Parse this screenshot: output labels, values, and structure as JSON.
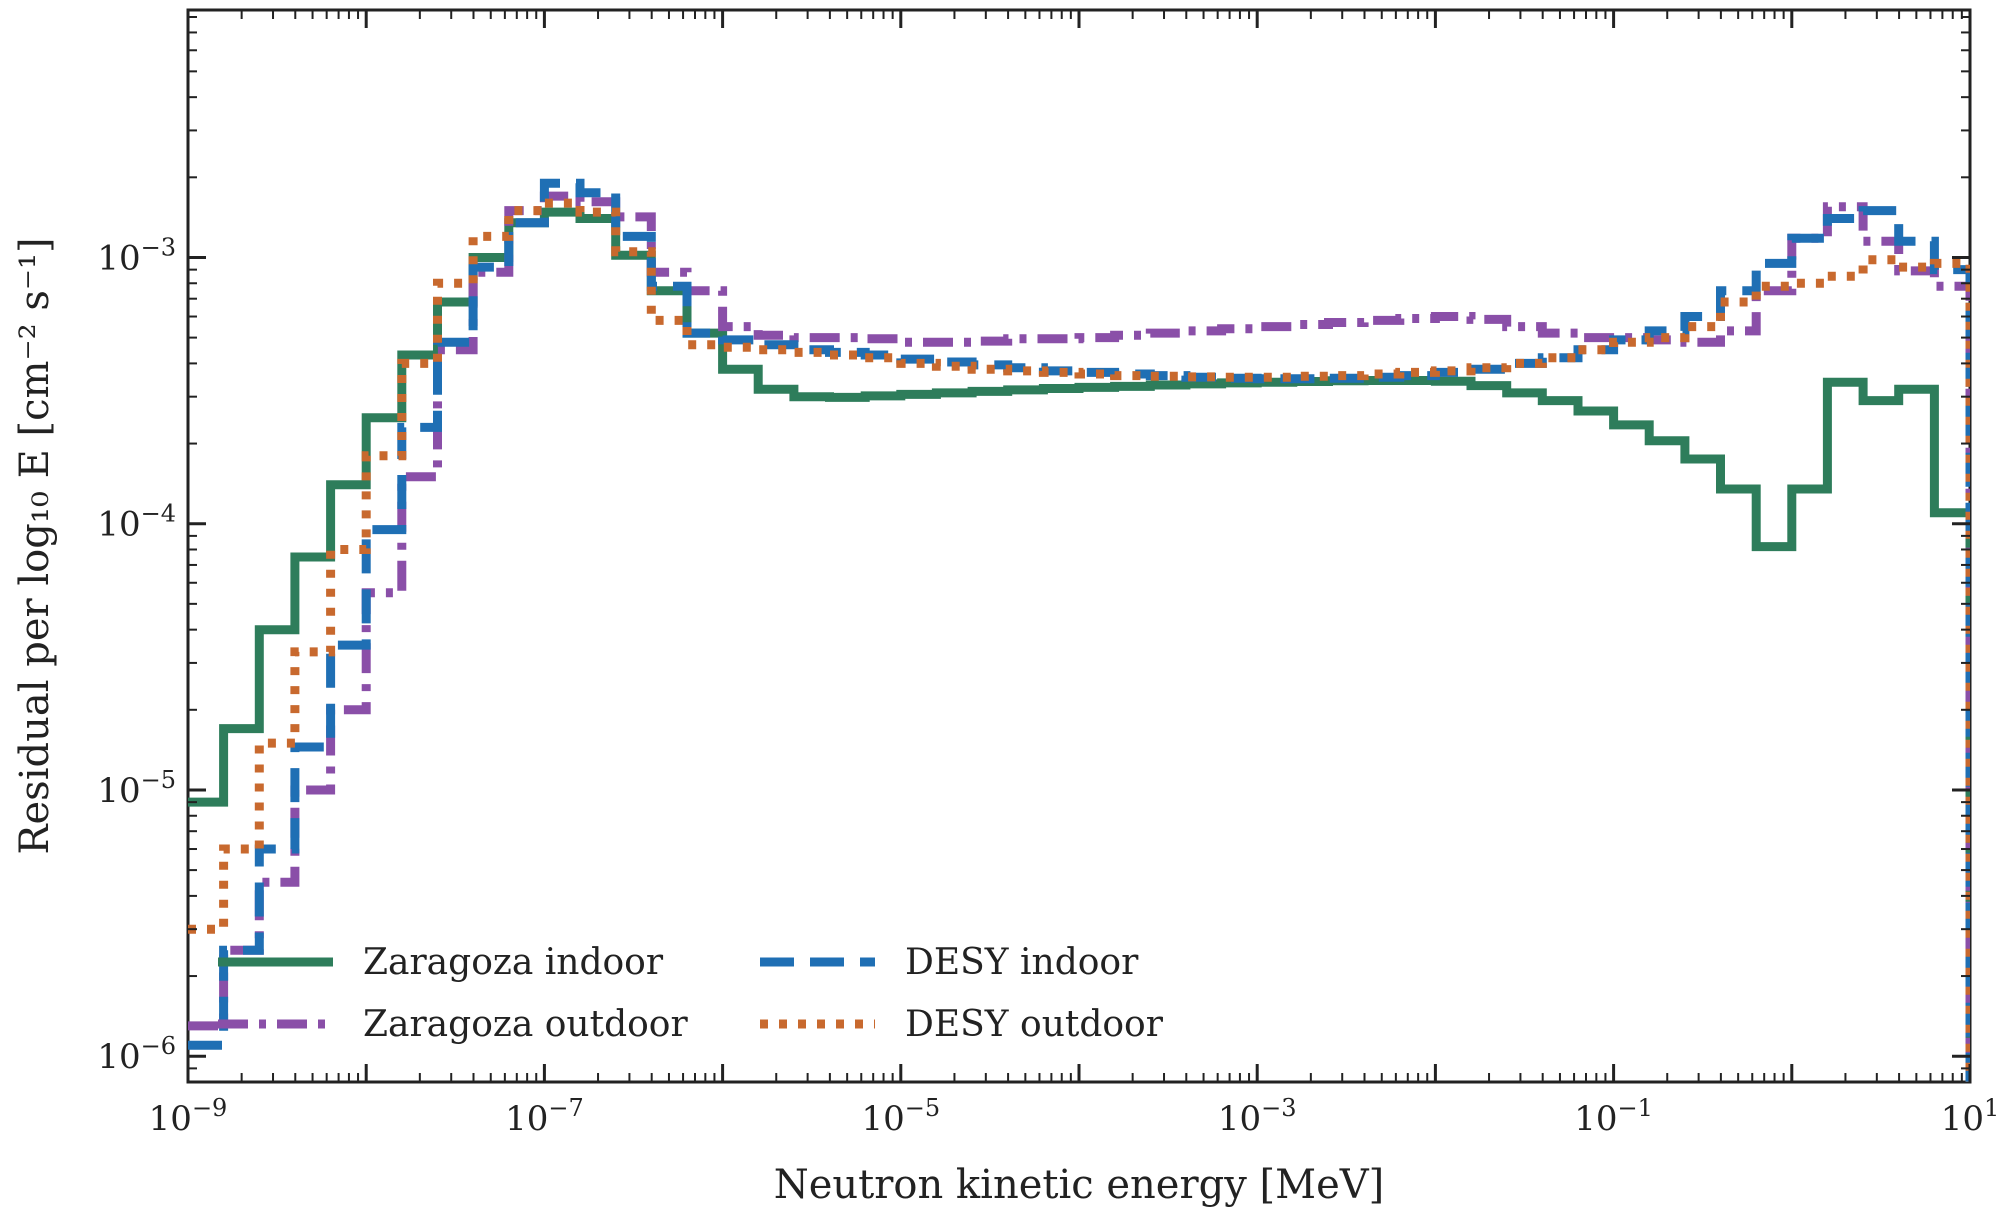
{
  "chart_data": {
    "type": "line",
    "step": true,
    "xlabel": "Neutron kinetic energy [MeV]",
    "ylabel": "Residual per log₁₀ E [cm⁻² s⁻¹]",
    "xscale": "log",
    "yscale": "log",
    "xlim": [
      1e-09,
      10
    ],
    "ylim": [
      8e-07,
      0.0085
    ],
    "x_tick_labels": [
      {
        "value": 1e-09,
        "base": "10",
        "exp": "−9"
      },
      {
        "value": 1e-07,
        "base": "10",
        "exp": "−7"
      },
      {
        "value": 1e-05,
        "base": "10",
        "exp": "−5"
      },
      {
        "value": 0.001,
        "base": "10",
        "exp": "−3"
      },
      {
        "value": 0.1,
        "base": "10",
        "exp": "−1"
      },
      {
        "value": 10,
        "base": "10",
        "exp": "1"
      }
    ],
    "y_tick_labels": [
      {
        "value": 1e-06,
        "base": "10",
        "exp": "−6"
      },
      {
        "value": 1e-05,
        "base": "10",
        "exp": "−5"
      },
      {
        "value": 0.0001,
        "base": "10",
        "exp": "−4"
      },
      {
        "value": 0.001,
        "base": "10",
        "exp": "−3"
      }
    ],
    "grid": false,
    "legend_position": "bottom-left",
    "bin_edges_log10": [
      -9.0,
      -8.8,
      -8.6,
      -8.4,
      -8.2,
      -8.0,
      -7.8,
      -7.6,
      -7.4,
      -7.2,
      -7.0,
      -6.8,
      -6.6,
      -6.4,
      -6.2,
      -6.0,
      -5.8,
      -5.6,
      -5.4,
      -5.2,
      -5.0,
      -4.8,
      -4.6,
      -4.4,
      -4.2,
      -4.0,
      -3.8,
      -3.6,
      -3.4,
      -3.2,
      -3.0,
      -2.8,
      -2.6,
      -2.4,
      -2.2,
      -2.0,
      -1.8,
      -1.6,
      -1.4,
      -1.2,
      -1.0,
      -0.8,
      -0.6,
      -0.4,
      -0.2,
      0.0,
      0.2,
      0.4,
      0.6,
      0.8,
      1.0
    ],
    "series": [
      {
        "name": "Zaragoza indoor",
        "color": "#2e7d5b",
        "dash": "solid",
        "values": [
          9e-06,
          1.7e-05,
          4e-05,
          7.5e-05,
          0.00014,
          0.00025,
          0.00043,
          0.00068,
          0.001,
          0.00135,
          0.00148,
          0.0014,
          0.00102,
          0.00075,
          0.00052,
          0.00038,
          0.00032,
          0.0003,
          0.000298,
          0.000302,
          0.000306,
          0.00031,
          0.000314,
          0.000318,
          0.000322,
          0.000325,
          0.000328,
          0.000332,
          0.000335,
          0.000338,
          0.00034,
          0.000342,
          0.000344,
          0.000345,
          0.000345,
          0.000343,
          0.00033,
          0.00031,
          0.00029,
          0.000265,
          0.000235,
          0.000205,
          0.000175,
          0.000135,
          8.2e-05,
          0.000135,
          0.00034,
          0.00029,
          0.00032,
          0.00011
        ]
      },
      {
        "name": "Zaragoza outdoor",
        "color": "#8a4fa8",
        "dash": "dashdot",
        "values": [
          1.3e-06,
          2.5e-06,
          4.5e-06,
          1e-05,
          2e-05,
          5.5e-05,
          0.00015,
          0.00045,
          0.00088,
          0.0015,
          0.0017,
          0.00162,
          0.00142,
          0.00088,
          0.00075,
          0.00055,
          0.00051,
          0.0005,
          0.0005,
          0.000495,
          0.00048,
          0.00048,
          0.000485,
          0.000495,
          0.000495,
          0.0005,
          0.00051,
          0.00052,
          0.00053,
          0.00054,
          0.00055,
          0.00056,
          0.00057,
          0.00058,
          0.00059,
          0.0006,
          0.000585,
          0.00055,
          0.00052,
          0.0005,
          0.0005,
          0.00049,
          0.00048,
          0.00053,
          0.00075,
          0.00118,
          0.00155,
          0.00115,
          0.00089,
          0.00078
        ]
      },
      {
        "name": "DESY indoor",
        "color": "#1f6fb4",
        "dash": "dashed",
        "values": [
          1.1e-06,
          2.5e-06,
          6e-06,
          1.45e-05,
          3.5e-05,
          9.5e-05,
          0.00023,
          0.00048,
          0.00092,
          0.00135,
          0.0019,
          0.00175,
          0.0012,
          0.00078,
          0.00052,
          0.00049,
          0.00047,
          0.00045,
          0.00044,
          0.00043,
          0.000415,
          0.000405,
          0.000395,
          0.000385,
          0.000375,
          0.00037,
          0.000365,
          0.00036,
          0.000355,
          0.000352,
          0.00035,
          0.00035,
          0.000352,
          0.000355,
          0.00036,
          0.00037,
          0.00038,
          0.0004,
          0.00042,
          0.00045,
          0.00049,
          0.00053,
          0.0006,
          0.00075,
          0.00095,
          0.00118,
          0.0014,
          0.0015,
          0.00115,
          0.0009
        ]
      },
      {
        "name": "DESY outdoor",
        "color": "#c8692e",
        "dash": "dotted",
        "values": [
          3e-06,
          6e-06,
          1.5e-05,
          3.3e-05,
          8e-05,
          0.00018,
          0.0004,
          0.0008,
          0.0012,
          0.0015,
          0.0016,
          0.00148,
          0.00105,
          0.00058,
          0.00047,
          0.00046,
          0.00045,
          0.00044,
          0.00043,
          0.00042,
          0.0004,
          0.00039,
          0.00038,
          0.000375,
          0.00037,
          0.000365,
          0.00036,
          0.000358,
          0.000356,
          0.000355,
          0.000355,
          0.000358,
          0.00036,
          0.000365,
          0.00037,
          0.000375,
          0.000385,
          0.0004,
          0.00042,
          0.00045,
          0.00048,
          0.0005,
          0.00055,
          0.00068,
          0.00078,
          0.0008,
          0.00085,
          0.00098,
          0.00092,
          0.00095
        ]
      }
    ]
  },
  "legend": {
    "entries": [
      {
        "label": "Zaragoza indoor",
        "color": "#2e7d5b",
        "dash": "solid"
      },
      {
        "label": "DESY indoor",
        "color": "#1f6fb4",
        "dash": "dashed"
      },
      {
        "label": "Zaragoza outdoor",
        "color": "#8a4fa8",
        "dash": "dashdot"
      },
      {
        "label": "DESY outdoor",
        "color": "#c8692e",
        "dash": "dotted"
      }
    ]
  }
}
